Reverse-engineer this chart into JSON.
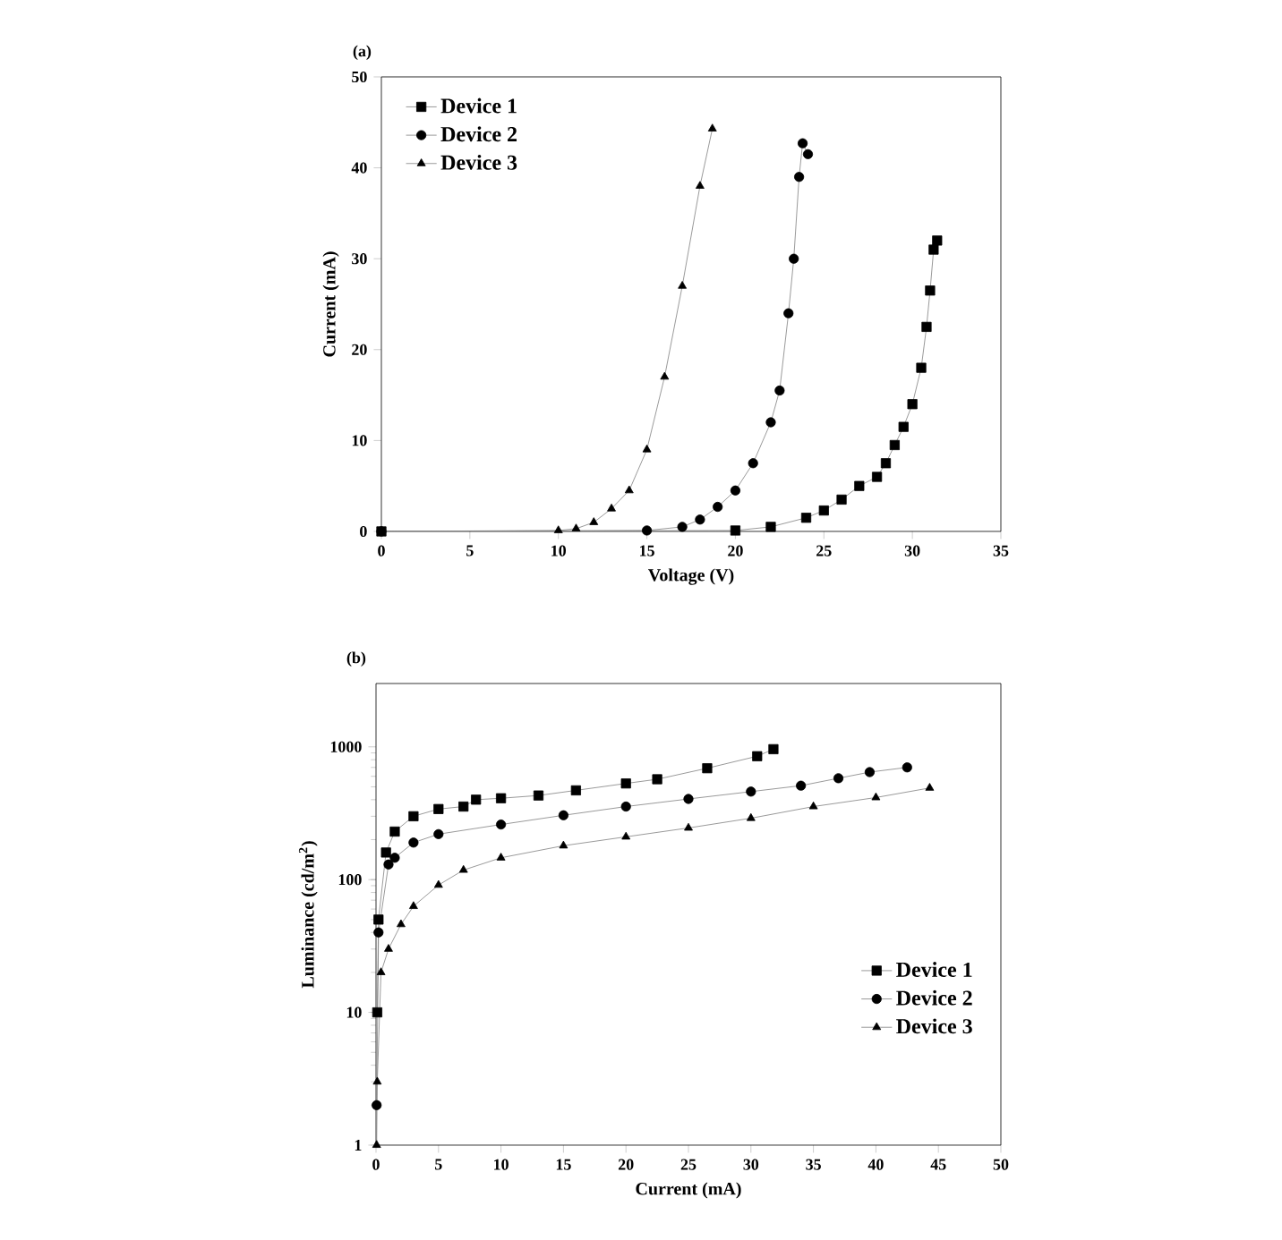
{
  "chart_data": [
    {
      "type": "line",
      "title": "(a)",
      "xlabel": "Voltage (V)",
      "ylabel": "Current (mA)",
      "xlim": [
        0,
        35
      ],
      "ylim": [
        0,
        50
      ],
      "xticks": [
        0,
        5,
        10,
        15,
        20,
        25,
        30,
        35
      ],
      "yticks": [
        0,
        10,
        20,
        30,
        40,
        50
      ],
      "legend": "top left",
      "line_style": "solid",
      "series": [
        {
          "name": "Device 1",
          "color": "#000000",
          "marker": "square",
          "x": [
            0,
            20,
            22,
            24,
            25,
            26,
            27,
            28,
            28.5,
            29,
            29.5,
            30,
            30.5,
            30.8,
            31,
            31.2,
            31.4
          ],
          "values": [
            0,
            0.1,
            0.5,
            1.5,
            2.3,
            3.5,
            5,
            6,
            7.5,
            9.5,
            11.5,
            14,
            18,
            22.5,
            26.5,
            31,
            32
          ]
        },
        {
          "name": "Device 2",
          "color": "#000000",
          "marker": "circle",
          "x": [
            0,
            15,
            17,
            18,
            19,
            20,
            21,
            22,
            22.5,
            23,
            23.3,
            23.6,
            23.8,
            24.1
          ],
          "values": [
            0,
            0.1,
            0.5,
            1.3,
            2.7,
            4.5,
            7.5,
            12,
            15.5,
            24,
            30,
            39,
            42.7,
            41.5
          ]
        },
        {
          "name": "Device 3",
          "color": "#000000",
          "marker": "triangle",
          "x": [
            0,
            10,
            11,
            12,
            13,
            14,
            15,
            16,
            17,
            18,
            18.7
          ],
          "values": [
            0,
            0.1,
            0.3,
            1,
            2.5,
            4.5,
            9,
            17,
            27,
            38,
            44.3
          ]
        }
      ]
    },
    {
      "type": "line",
      "title": "(b)",
      "xlabel": "Current (mA)",
      "ylabel": "Luminance (cd/m$^{2}$)",
      "log": "y",
      "xlim": [
        0,
        50
      ],
      "ylim": [
        1,
        3000
      ],
      "xticks": [
        0,
        5,
        10,
        15,
        20,
        25,
        30,
        35,
        40,
        45,
        50
      ],
      "yticks": [
        1,
        10,
        100,
        1000
      ],
      "legend": "bottom right",
      "line_style": "solid",
      "series": [
        {
          "name": "Device 1",
          "color": "#000000",
          "marker": "square",
          "x": [
            0.1,
            0.2,
            0.8,
            1.5,
            3,
            5,
            7,
            8,
            10,
            13,
            16,
            20,
            22.5,
            26.5,
            30.5,
            31.8
          ],
          "values": [
            10,
            50,
            160,
            230,
            300,
            340,
            355,
            400,
            410,
            430,
            470,
            530,
            570,
            690,
            850,
            960
          ]
        },
        {
          "name": "Device 2",
          "color": "#000000",
          "marker": "circle",
          "x": [
            0.05,
            0.2,
            1,
            1.5,
            3,
            5,
            10,
            15,
            20,
            25,
            30,
            34,
            37,
            39.5,
            42.5
          ],
          "values": [
            2,
            40,
            130,
            146,
            190,
            220,
            260,
            305,
            355,
            405,
            460,
            510,
            580,
            645,
            700
          ]
        },
        {
          "name": "Device 3",
          "color": "#000000",
          "marker": "triangle",
          "x": [
            0.05,
            0.1,
            0.4,
            1,
            2,
            3,
            5,
            7,
            10,
            15,
            20,
            25,
            30,
            35,
            40,
            44.3
          ],
          "values": [
            1,
            3,
            20,
            30,
            46,
            63,
            91,
            118,
            146,
            180,
            210,
            245,
            290,
            355,
            415,
            490
          ]
        }
      ]
    }
  ]
}
